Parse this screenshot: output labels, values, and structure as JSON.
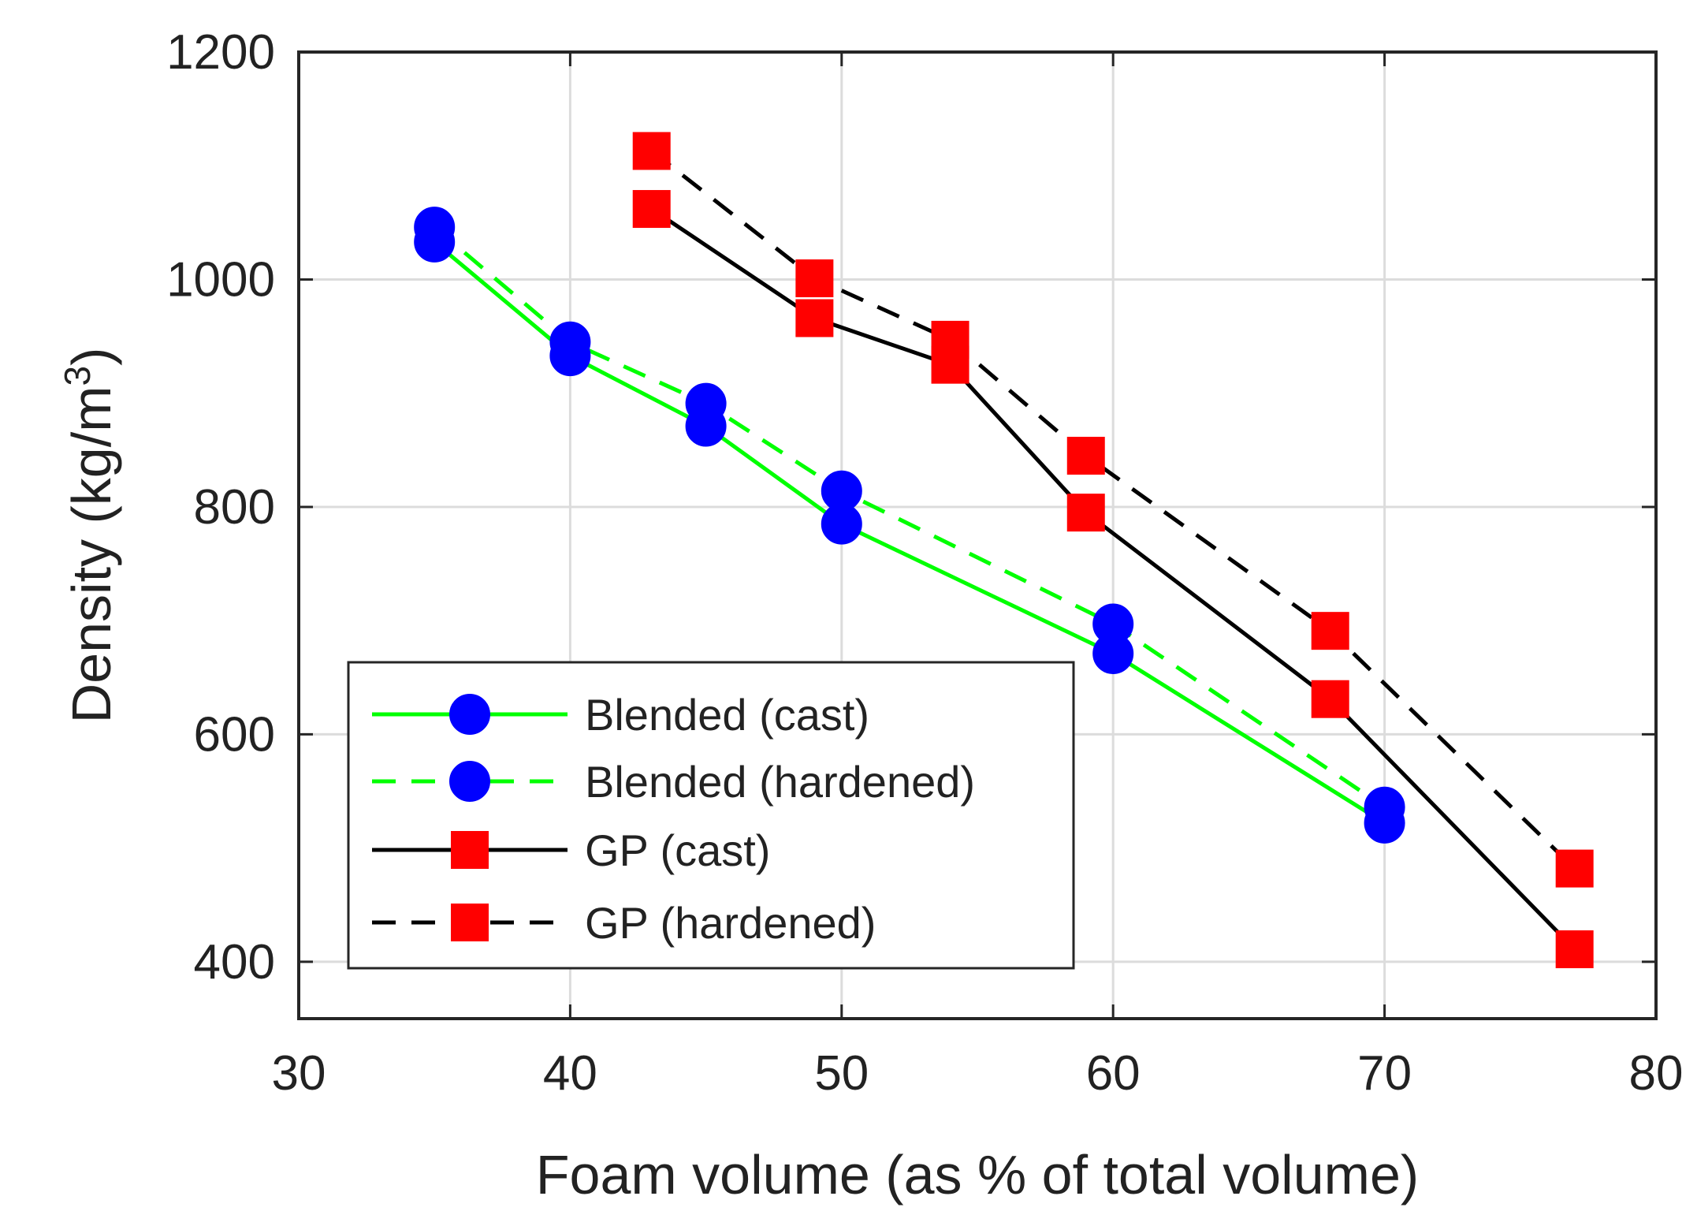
{
  "chart_data": {
    "type": "line",
    "title": "",
    "xlabel": "Foam volume (as % of total volume)",
    "ylabel_main": "Density (kg/m",
    "ylabel_sup": "3",
    "ylabel_close": ")",
    "xlim": [
      30,
      80
    ],
    "ylim": [
      350,
      1200
    ],
    "xticks": [
      30,
      40,
      50,
      60,
      70,
      80
    ],
    "yticks": [
      400,
      600,
      800,
      1000,
      1200
    ],
    "grid": true,
    "legend_position": "bottom-left",
    "series": [
      {
        "name": "Blended (cast)",
        "color": "#00ff00",
        "line_style": "solid",
        "marker": "circle",
        "marker_color": "#0000ff",
        "x": [
          35,
          40,
          45,
          50,
          60,
          70
        ],
        "y": [
          1033,
          933,
          871,
          785,
          671,
          522
        ]
      },
      {
        "name": "Blended (hardened)",
        "color": "#00ff00",
        "line_style": "dashed",
        "marker": "circle",
        "marker_color": "#0000ff",
        "x": [
          35,
          40,
          45,
          50,
          60,
          70
        ],
        "y": [
          1046,
          945,
          891,
          814,
          697,
          536
        ]
      },
      {
        "name": "GP (cast)",
        "color": "#000000",
        "line_style": "solid",
        "marker": "square",
        "marker_color": "#ff0000",
        "x": [
          43,
          49,
          54,
          59,
          68,
          77
        ],
        "y": [
          1062,
          966,
          925,
          795,
          631,
          411
        ]
      },
      {
        "name": "GP (hardened)",
        "color": "#000000",
        "line_style": "dashed",
        "marker": "square",
        "marker_color": "#ff0000",
        "x": [
          43,
          49,
          54,
          59,
          68,
          77
        ],
        "y": [
          1113,
          1001,
          947,
          845,
          691,
          482
        ]
      }
    ]
  }
}
